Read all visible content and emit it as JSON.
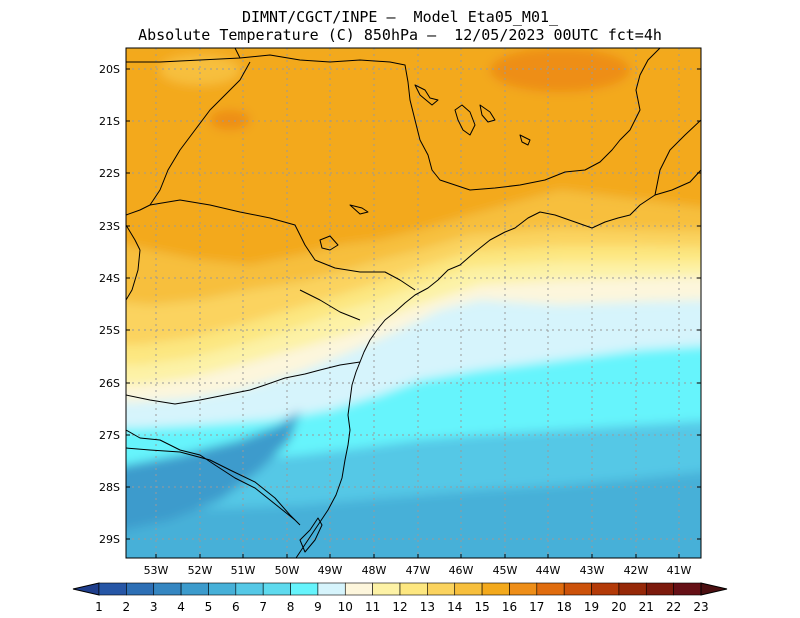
{
  "header": {
    "line1": "DIMNT/CGCT/INPE –  Model Eta05_M01_",
    "line2": "Absolute Temperature (C) 850hPa –  12/05/2023 00UTC fct=4h"
  },
  "map": {
    "lat_labels": [
      "20S",
      "21S",
      "22S",
      "23S",
      "24S",
      "25S",
      "26S",
      "27S",
      "28S",
      "29S"
    ],
    "lon_labels": [
      "53W",
      "52W",
      "51W",
      "50W",
      "49W",
      "48W",
      "47W",
      "46W",
      "45W",
      "44W",
      "43W",
      "42W",
      "41W"
    ],
    "grid": true
  },
  "colorbar": {
    "labels": [
      "1",
      "2",
      "3",
      "4",
      "5",
      "6",
      "7",
      "8",
      "9",
      "10",
      "11",
      "12",
      "13",
      "14",
      "15",
      "16",
      "17",
      "18",
      "19",
      "20",
      "21",
      "22",
      "23"
    ],
    "colors": [
      "#1f3e8c",
      "#2656a6",
      "#2d6fb5",
      "#3586c1",
      "#3c9bcc",
      "#46b0d8",
      "#55c8e6",
      "#5edaee",
      "#66f4fc",
      "#d6f4fc",
      "#fdf6dc",
      "#fdf2a6",
      "#fde780",
      "#fbd35e",
      "#f7bf3c",
      "#f3a91c",
      "#ee8e18",
      "#e06c0e",
      "#cc520a",
      "#b33a08",
      "#962808",
      "#7c1a0c",
      "#661016",
      "#4b0f11"
    ]
  }
}
